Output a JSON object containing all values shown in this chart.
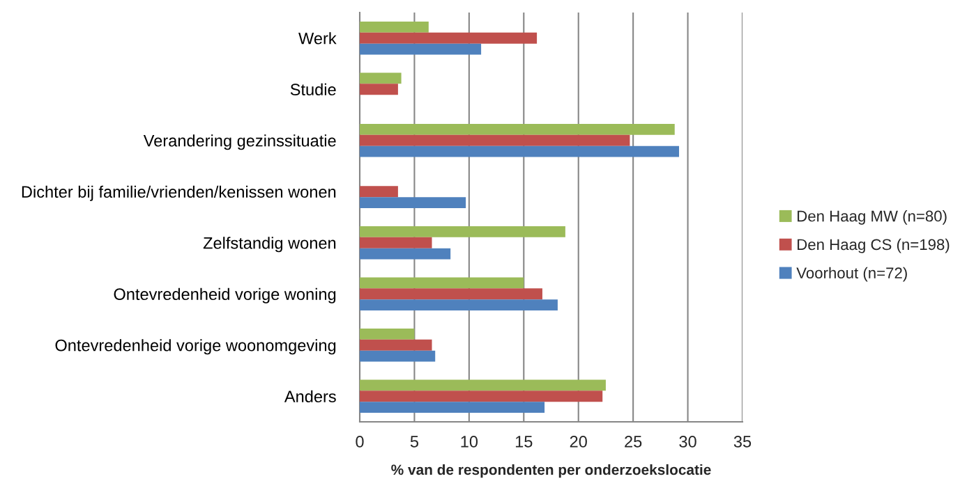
{
  "chart_data": {
    "type": "bar",
    "orientation": "horizontal",
    "xlabel": "% van de respondenten per onderzoekslocatie",
    "categories": [
      "Werk",
      "Studie",
      "Verandering gezinssituatie",
      "Dichter bij familie/vrienden/kenissen wonen",
      "Zelfstandig wonen",
      "Ontevredenheid vorige woning",
      "Ontevredenheid vorige woonomgeving",
      "Anders"
    ],
    "series": [
      {
        "name": "Den Haag MW (n=80)",
        "color": "#9bbb59",
        "values": [
          6.3,
          3.8,
          28.8,
          null,
          18.8,
          15.0,
          5.0,
          22.5
        ]
      },
      {
        "name": "Den Haag CS (n=198)",
        "color": "#c0504d",
        "values": [
          16.2,
          3.5,
          24.7,
          3.5,
          6.6,
          16.7,
          6.6,
          22.2
        ]
      },
      {
        "name": "Voorhout (n=72)",
        "color": "#4f81bd",
        "values": [
          11.1,
          null,
          29.2,
          9.7,
          8.3,
          18.1,
          6.9,
          16.9
        ]
      }
    ],
    "xlim": [
      0,
      35
    ],
    "xticks": [
      0,
      5,
      10,
      15,
      20,
      25,
      30,
      35
    ],
    "grid": "x",
    "legend": "right"
  }
}
